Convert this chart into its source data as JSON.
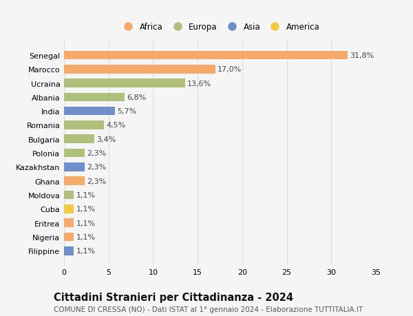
{
  "countries": [
    "Filippine",
    "Nigeria",
    "Eritrea",
    "Cuba",
    "Moldova",
    "Ghana",
    "Kazakhstan",
    "Polonia",
    "Bulgaria",
    "Romania",
    "India",
    "Albania",
    "Ucraina",
    "Marocco",
    "Senegal"
  ],
  "values": [
    1.1,
    1.1,
    1.1,
    1.1,
    1.1,
    2.3,
    2.3,
    2.3,
    3.4,
    4.5,
    5.7,
    6.8,
    13.6,
    17.0,
    31.8
  ],
  "labels": [
    "1,1%",
    "1,1%",
    "1,1%",
    "1,1%",
    "1,1%",
    "2,3%",
    "2,3%",
    "2,3%",
    "3,4%",
    "4,5%",
    "5,7%",
    "6,8%",
    "13,6%",
    "17,0%",
    "31,8%"
  ],
  "colors": [
    "#6e8fcb",
    "#f5a96a",
    "#f5a96a",
    "#f5c842",
    "#aec07a",
    "#f5a96a",
    "#6e8fcb",
    "#aec07a",
    "#aec07a",
    "#aec07a",
    "#6e8fcb",
    "#aec07a",
    "#aec07a",
    "#f5a96a",
    "#f5a96a"
  ],
  "legend": [
    {
      "label": "Africa",
      "color": "#f5a96a"
    },
    {
      "label": "Europa",
      "color": "#aec07a"
    },
    {
      "label": "Asia",
      "color": "#6e8fcb"
    },
    {
      "label": "America",
      "color": "#f5c842"
    }
  ],
  "title": "Cittadini Stranieri per Cittadinanza - 2024",
  "subtitle": "COMUNE DI CRESSA (NO) - Dati ISTAT al 1° gennaio 2024 - Elaborazione TUTTITALIA.IT",
  "xlim": [
    0,
    35
  ],
  "xticks": [
    0,
    5,
    10,
    15,
    20,
    25,
    30,
    35
  ],
  "background_color": "#f5f5f5",
  "grid_color": "#dddddd",
  "label_fontsize": 8,
  "ytick_fontsize": 8,
  "xtick_fontsize": 8,
  "title_fontsize": 10.5,
  "subtitle_fontsize": 7.5,
  "bar_height": 0.62
}
